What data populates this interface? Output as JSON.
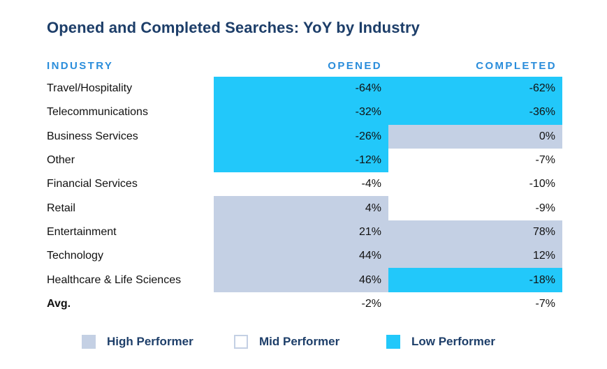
{
  "title": "Opened and Completed Searches: YoY by Industry",
  "colors": {
    "high": "#c4d0e4",
    "mid": "#ffffff",
    "low": "#22c8fa",
    "mid_border": "#c4d0e4"
  },
  "headers": {
    "industry": "INDUSTRY",
    "opened": "OPENED",
    "completed": "COMPLETED"
  },
  "legend": [
    {
      "key": "high",
      "label": "High Performer"
    },
    {
      "key": "mid",
      "label": "Mid Performer"
    },
    {
      "key": "low",
      "label": "Low Performer"
    }
  ],
  "chart_data": {
    "type": "table",
    "title": "Opened and Completed Searches: YoY by Industry",
    "columns": [
      "INDUSTRY",
      "OPENED",
      "COMPLETED"
    ],
    "rows": [
      {
        "industry": "Travel/Hospitality",
        "opened": "-64%",
        "opened_tier": "low",
        "completed": "-62%",
        "completed_tier": "low"
      },
      {
        "industry": "Telecommunications",
        "opened": "-32%",
        "opened_tier": "low",
        "completed": "-36%",
        "completed_tier": "low"
      },
      {
        "industry": "Business Services",
        "opened": "-26%",
        "opened_tier": "low",
        "completed": "0%",
        "completed_tier": "high"
      },
      {
        "industry": "Other",
        "opened": "-12%",
        "opened_tier": "low",
        "completed": "-7%",
        "completed_tier": "mid"
      },
      {
        "industry": "Financial Services",
        "opened": "-4%",
        "opened_tier": "mid",
        "completed": "-10%",
        "completed_tier": "mid"
      },
      {
        "industry": "Retail",
        "opened": "4%",
        "opened_tier": "high",
        "completed": "-9%",
        "completed_tier": "mid"
      },
      {
        "industry": "Entertainment",
        "opened": "21%",
        "opened_tier": "high",
        "completed": "78%",
        "completed_tier": "high"
      },
      {
        "industry": "Technology",
        "opened": "44%",
        "opened_tier": "high",
        "completed": "12%",
        "completed_tier": "high"
      },
      {
        "industry": "Healthcare & Life Sciences",
        "opened": "46%",
        "opened_tier": "high",
        "completed": "-18%",
        "completed_tier": "low"
      }
    ],
    "average": {
      "industry": "Avg.",
      "opened": "-2%",
      "completed": "-7%"
    },
    "legend_position": "bottom"
  }
}
